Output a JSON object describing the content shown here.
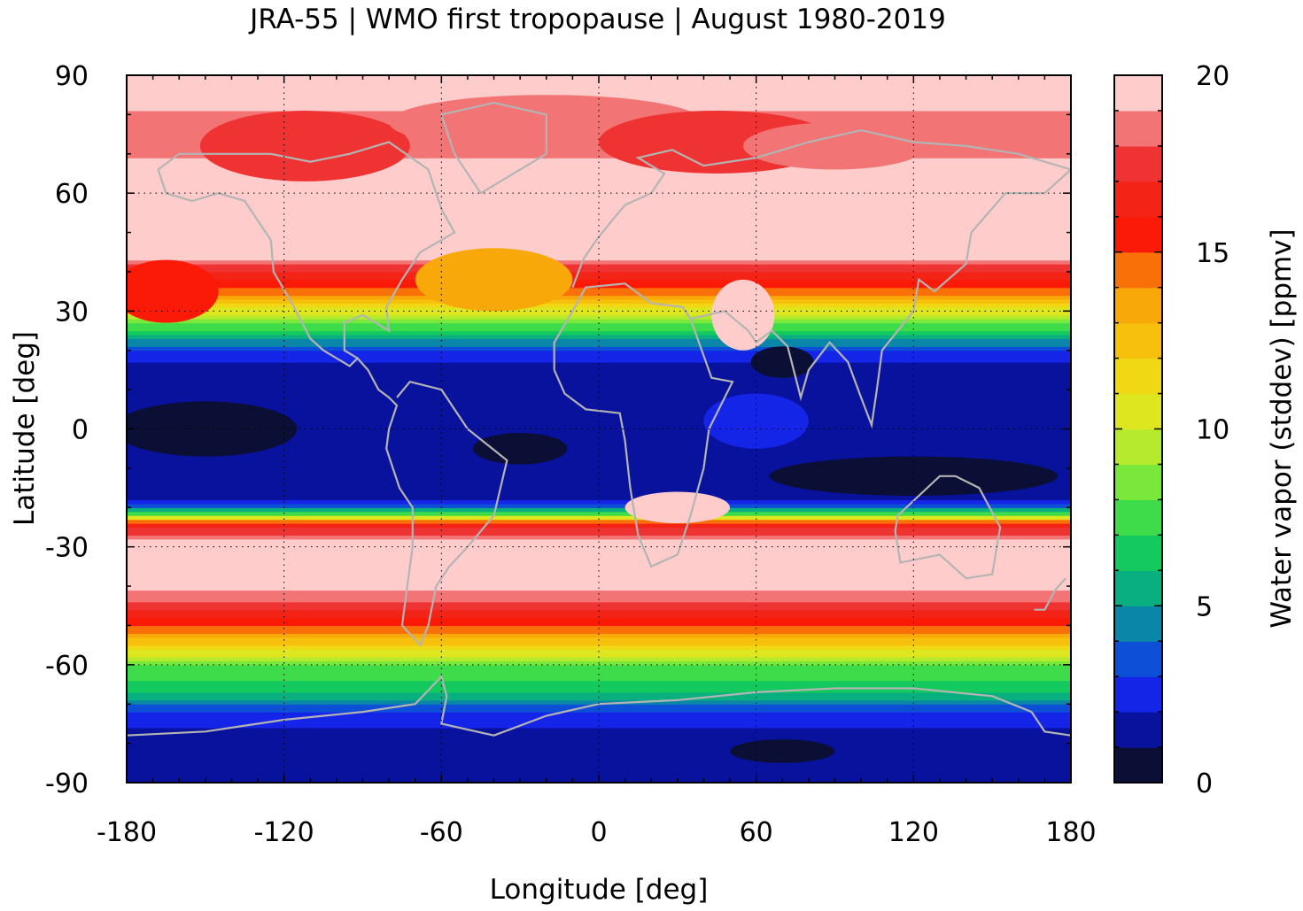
{
  "chart_data": {
    "type": "heatmap",
    "title": "JRA-55 | WMO first tropopause | August 1980-2019",
    "xlabel": "Longitude [deg]",
    "ylabel": "Latitude [deg]",
    "xlim": [
      -180,
      180
    ],
    "ylim": [
      -90,
      90
    ],
    "xticks": [
      "-180",
      "-120",
      "-60",
      "0",
      "60",
      "120",
      "180"
    ],
    "yticks": [
      "90",
      "60",
      "30",
      "0",
      "-30",
      "-60",
      "-90"
    ],
    "grid": true,
    "colorbar": {
      "label": "Water vapor (stddev) [ppmv]",
      "range": [
        0,
        20
      ],
      "ticks": [
        "20",
        "15",
        "10",
        "5",
        "0"
      ],
      "levels": 20,
      "colors": [
        "#0b0f36",
        "#08129c",
        "#1525e8",
        "#0d4fd6",
        "#0a86a8",
        "#0aaf80",
        "#14c95e",
        "#3edc4a",
        "#7ae83a",
        "#b6ea2c",
        "#dde61e",
        "#f0d814",
        "#f6c00c",
        "#f8a808",
        "#fa7008",
        "#fb1a08",
        "#f32416",
        "#ef3232",
        "#f27474",
        "#ffcccc"
      ]
    },
    "background_overlay": "grey coastlines",
    "zonal_profile_ppmv": [
      {
        "lat": -90,
        "value": 1.0
      },
      {
        "lat": -80,
        "value": 1.2
      },
      {
        "lat": -72,
        "value": 3.0
      },
      {
        "lat": -66,
        "value": 6.5
      },
      {
        "lat": -60,
        "value": 8.0
      },
      {
        "lat": -55,
        "value": 12.0
      },
      {
        "lat": -50,
        "value": 15.0
      },
      {
        "lat": -45,
        "value": 17.5
      },
      {
        "lat": -40,
        "value": 19.5
      },
      {
        "lat": -30,
        "value": 20.0
      },
      {
        "lat": -24,
        "value": 16.0
      },
      {
        "lat": -22,
        "value": 8.0
      },
      {
        "lat": -18,
        "value": 1.5
      },
      {
        "lat": 0,
        "value": 1.2
      },
      {
        "lat": 15,
        "value": 1.5
      },
      {
        "lat": 20,
        "value": 3.0
      },
      {
        "lat": 28,
        "value": 9.0
      },
      {
        "lat": 35,
        "value": 14.5
      },
      {
        "lat": 40,
        "value": 17.0
      },
      {
        "lat": 45,
        "value": 20.0
      },
      {
        "lat": 65,
        "value": 20.0
      },
      {
        "lat": 72,
        "value": 18.0
      },
      {
        "lat": 90,
        "value": 20.0
      }
    ]
  }
}
